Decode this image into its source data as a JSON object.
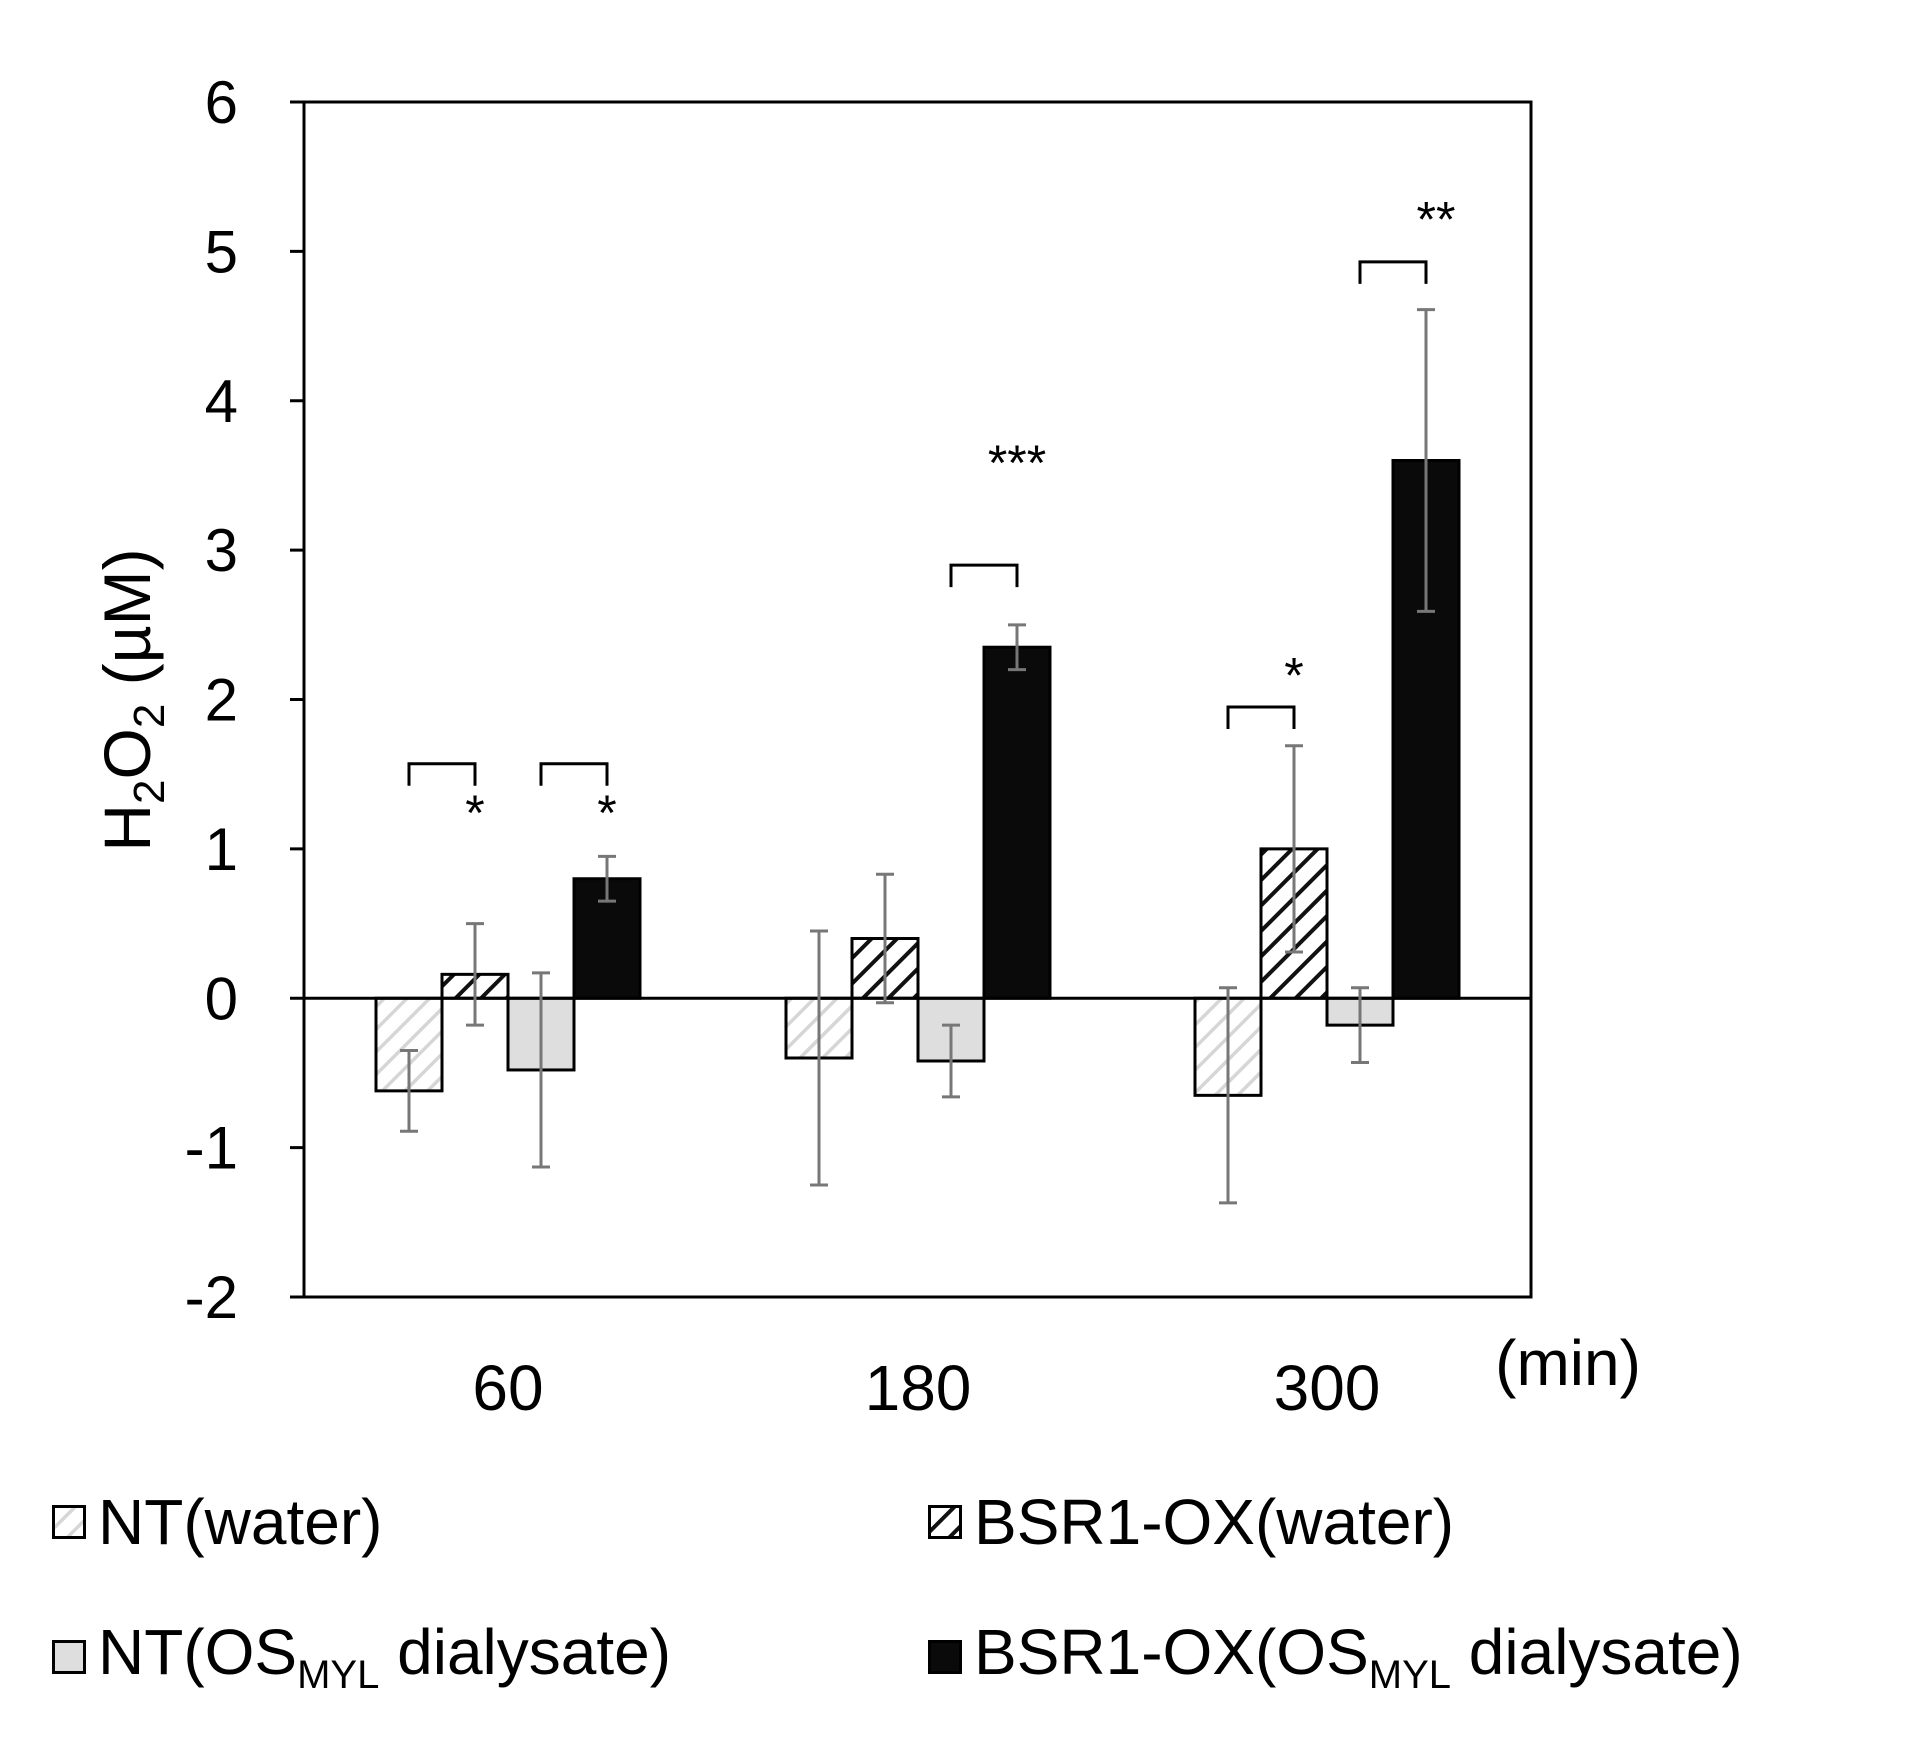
{
  "chart_data": {
    "type": "bar",
    "categories": [
      "60",
      "180",
      "300"
    ],
    "unit_label": "(min)",
    "ylabel_parts": [
      "H",
      "2",
      "O",
      "2",
      " (µM)"
    ],
    "ylim": [
      -2,
      6
    ],
    "yticks": [
      "-2",
      "-1",
      "0",
      "1",
      "2",
      "3",
      "4",
      "5",
      "6"
    ],
    "series": [
      {
        "name": "NT(water)",
        "style": "light-hatch",
        "values": [
          -0.62,
          -0.4,
          -0.65
        ],
        "errors": [
          0.27,
          0.85,
          0.72
        ]
      },
      {
        "name": "BSR1-OX(water)",
        "style": "dark-hatch",
        "values": [
          0.16,
          0.4,
          1.0
        ],
        "errors": [
          0.34,
          0.43,
          0.69
        ]
      },
      {
        "name": "NT(OS_MYL dialysate)",
        "style": "gray",
        "values": [
          -0.48,
          -0.42,
          -0.18
        ],
        "errors": [
          0.65,
          0.24,
          0.25
        ]
      },
      {
        "name": "BSR1-OX(OS_MYL dialysate)",
        "style": "black",
        "values": [
          0.8,
          2.35,
          3.6
        ],
        "errors": [
          0.15,
          0.15,
          1.01
        ]
      }
    ],
    "significance": [
      {
        "category": 0,
        "from": 0,
        "to": 1,
        "label": "*"
      },
      {
        "category": 0,
        "from": 2,
        "to": 3,
        "label": "*"
      },
      {
        "category": 1,
        "from": 2,
        "to": 3,
        "label": "***"
      },
      {
        "category": 2,
        "from": 0,
        "to": 1,
        "label": "*"
      },
      {
        "category": 2,
        "from": 2,
        "to": 3,
        "label": "**"
      }
    ],
    "legend": [
      {
        "text": "NT(water)"
      },
      {
        "text": "BSR1-OX(water)"
      },
      {
        "text_before": "NT(OS",
        "subscript": "MYL",
        "text_after": " dialysate)"
      },
      {
        "text_before": "BSR1-OX(OS",
        "subscript": "MYL",
        "text_after": " dialysate)"
      }
    ],
    "colors": {
      "light_fill": "#ffffff",
      "light_hatch": "#d6d6d6",
      "dark_fill": "#ffffff",
      "dark_hatch": "#111111",
      "gray": "#dedede",
      "black": "#0a0a0a",
      "error_bar": "#777777",
      "axis": "#000000"
    }
  }
}
